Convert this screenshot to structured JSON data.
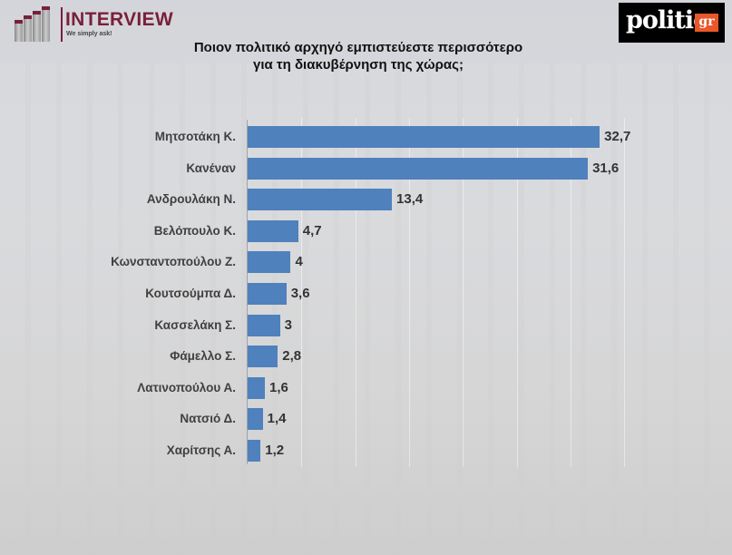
{
  "header": {
    "left_logo": {
      "title": "INTERVIEW",
      "tagline": "We simply ask!"
    },
    "right_logo": {
      "text": "politic",
      "badge": "gr"
    },
    "title_line1": "Ποιον πολιτικό αρχηγό εμπιστεύεστε περισσότερο",
    "title_line2": "για τη διακυβέρνηση της χώρας;"
  },
  "colors": {
    "bar": "#4f81bd",
    "brand_left": "#7a1f3a",
    "brand_right_badge": "#e8562a"
  },
  "chart_data": {
    "type": "bar",
    "orientation": "horizontal",
    "title": "Ποιον πολιτικό αρχηγό εμπιστεύεστε περισσότερο για τη διακυβέρνηση της χώρας;",
    "xlabel": "",
    "ylabel": "",
    "categories": [
      "Μητσοτάκη Κ.",
      "Κανέναν",
      "Ανδρουλάκη Ν.",
      "Βελόπουλο Κ.",
      "Κωνσταντοπούλου Ζ.",
      "Κουτσούμπα Δ.",
      "Κασσελάκη Σ.",
      "Φάμελλο Σ.",
      "Λατινοπούλου Α.",
      "Νατσιό Δ.",
      "Χαρίτσης Α."
    ],
    "values": [
      32.7,
      31.6,
      13.4,
      4.7,
      4,
      3.6,
      3,
      2.8,
      1.6,
      1.4,
      1.2
    ],
    "value_labels": [
      "32,7",
      "31,6",
      "13,4",
      "4,7",
      "4",
      "3,6",
      "3",
      "2,8",
      "1,6",
      "1,4",
      "1,2"
    ],
    "xlim": [
      0,
      35
    ],
    "grid": true,
    "legend": null
  }
}
